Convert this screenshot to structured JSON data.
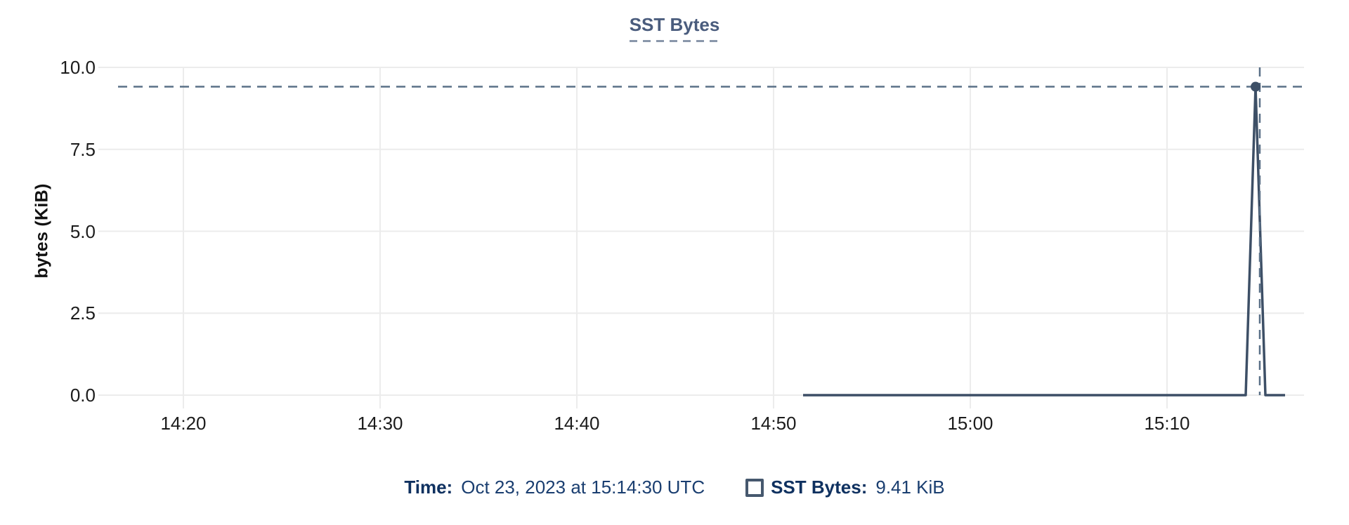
{
  "title": "SST Bytes",
  "y_axis_label": "bytes (KiB)",
  "tooltip": {
    "time_label": "Time:",
    "time_value": "Oct 23, 2023 at 15:14:30 UTC",
    "series_label": "SST Bytes:",
    "series_value": "9.41 KiB"
  },
  "colors": {
    "series": "#3d4f66",
    "crosshair": "#5a7087",
    "grid": "#ececec",
    "axis_text": "#1c1c1c",
    "title": "#4a5c7d",
    "title_underline": "#8a97ab",
    "tooltip_label": "#0f3160",
    "tooltip_value": "#1a3e70",
    "swatch_border": "#46586e",
    "background": "#ffffff"
  },
  "chart_data": {
    "type": "line",
    "title": "SST Bytes",
    "xlabel": "",
    "ylabel": "bytes (KiB)",
    "ylim": [
      0,
      10
    ],
    "grid": true,
    "legend_position": "bottom",
    "y_ticks": [
      {
        "label": "10.0",
        "value": 10
      },
      {
        "label": "7.5",
        "value": 7.5
      },
      {
        "label": "5.0",
        "value": 5
      },
      {
        "label": "2.5",
        "value": 2.5
      },
      {
        "label": "0.0",
        "value": 0
      }
    ],
    "x_ticks": [
      "14:20",
      "14:30",
      "14:40",
      "14:50",
      "15:00",
      "15:10"
    ],
    "series": [
      {
        "name": "SST Bytes",
        "color": "#3d4f66",
        "points": [
          {
            "time": "14:51:30",
            "value": 0
          },
          {
            "time": "15:14:00",
            "value": 0
          },
          {
            "time": "15:14:30",
            "value": 9.41
          },
          {
            "time": "15:15:00",
            "value": 0
          },
          {
            "time": "15:16:00",
            "value": 0
          }
        ]
      }
    ],
    "hover_point": {
      "series": "SST Bytes",
      "time": "15:14:30",
      "value": 9.41,
      "value_label": "9.41 KiB",
      "date": "Oct 23, 2023",
      "tz": "UTC"
    }
  }
}
